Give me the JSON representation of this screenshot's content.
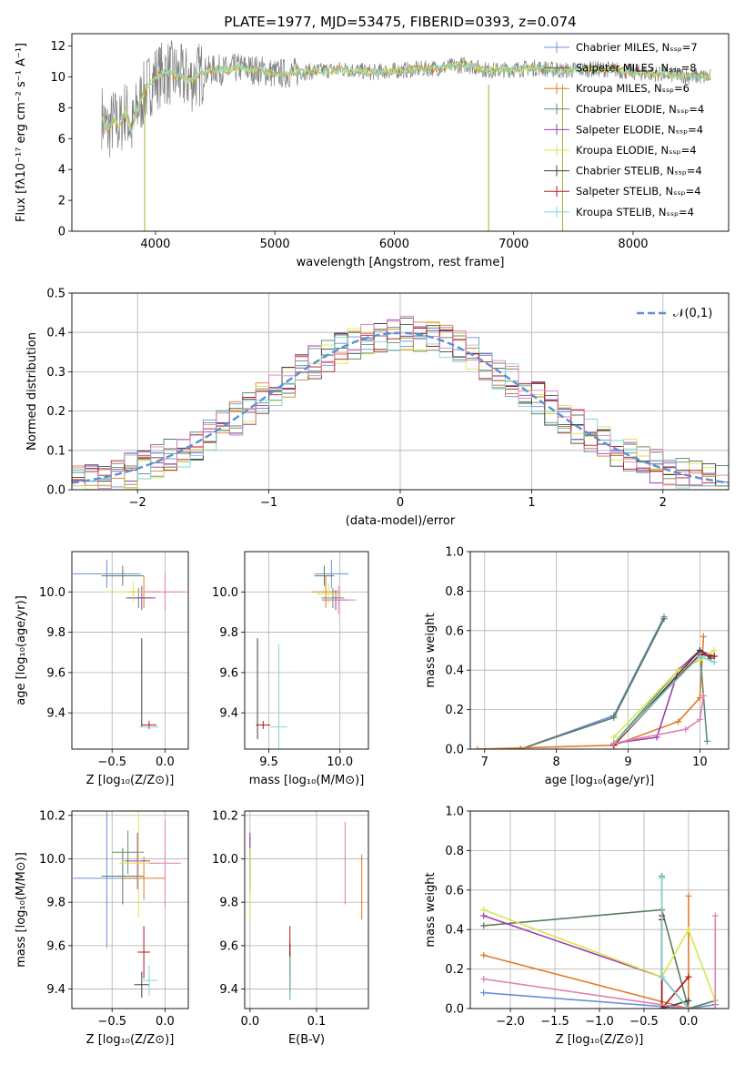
{
  "colors": [
    "#6a8fd8",
    "#5a7a5a",
    "#e07a2a",
    "#5f8f6f",
    "#9b3fb0",
    "#d9e64a",
    "#404040",
    "#b01818",
    "#7fd6d6",
    "#e07fb0"
  ],
  "chart_data": [
    {
      "id": "spectrum",
      "type": "line",
      "title": "PLATE=1977, MJD=53475, FIBERID=0393, z=0.074",
      "xlabel": "wavelength [Angstrom, rest frame]",
      "ylabel": "Flux [fλ10⁻¹⁷ erg cm⁻² s⁻¹ A⁻¹]",
      "xlim": [
        3300,
        8800
      ],
      "ylim": [
        0,
        12.8
      ],
      "xticks": [
        4000,
        5000,
        6000,
        7000,
        8000
      ],
      "yticks": [
        0,
        2,
        4,
        6,
        8,
        10,
        12
      ],
      "grid": false,
      "legend_position": "top-right",
      "legend": [
        "Chabrier MILES, Nₛₛₚ=7",
        "Salpeter MILES, Nₛₛₚ=8",
        "Kroupa MILES, Nₛₛₚ=6",
        "Chabrier ELODIE, Nₛₛₚ=4",
        "Salpeter ELODIE, Nₛₛₚ=4",
        "Kroupa ELODIE, Nₛₛₚ=4",
        "Chabrier STELIB, Nₛₛₚ=4",
        "Salpeter STELIB, Nₛₛₚ=4",
        "Kroupa STELIB, Nₛₛₚ=4"
      ],
      "data_trace": {
        "x": [
          3550,
          3600,
          3650,
          3700,
          3750,
          3800,
          3850,
          3900,
          3950,
          4000,
          4100,
          4200,
          4300,
          4400,
          4500,
          4600,
          4700,
          4800,
          4900,
          5000,
          5200,
          5400,
          5600,
          5800,
          6000,
          6200,
          6400,
          6600,
          6800,
          7000,
          7200,
          7400,
          7600,
          7800,
          8000,
          8200,
          8400,
          8600
        ],
        "y": [
          7.5,
          6.5,
          7.2,
          6.8,
          7.9,
          6.5,
          8.0,
          8.8,
          9.5,
          10.0,
          10.3,
          10.0,
          9.8,
          10.3,
          10.5,
          10.4,
          10.6,
          10.5,
          10.4,
          10.2,
          10.3,
          10.4,
          10.5,
          10.3,
          10.4,
          10.5,
          10.6,
          10.8,
          10.4,
          10.5,
          10.6,
          10.4,
          10.5,
          10.5,
          10.3,
          10.2,
          10.1,
          10.0
        ]
      }
    },
    {
      "id": "residuals",
      "type": "line",
      "xlabel": "(data-model)/error",
      "ylabel": "Normed distribution",
      "xlim": [
        -2.5,
        2.5
      ],
      "ylim": [
        0,
        0.5
      ],
      "xticks": [
        -2,
        -1,
        0,
        1,
        2
      ],
      "yticks": [
        0.0,
        0.1,
        0.2,
        0.3,
        0.4,
        0.5
      ],
      "grid": true,
      "legend_position": "top-right",
      "legend": [
        "𝒩(0,1)"
      ]
    },
    {
      "id": "z-age",
      "type": "scatter",
      "xlabel": "Z [log₁₀(Z/Z⊙)]",
      "ylabel": "age  [log₁₀(age/yr)]",
      "xlim": [
        -0.88,
        0.22
      ],
      "ylim": [
        9.22,
        10.2
      ],
      "xticks": [
        -0.5,
        0.0
      ],
      "yticks": [
        9.4,
        9.6,
        9.8,
        10.0
      ],
      "grid": true
    },
    {
      "id": "mass-age",
      "type": "scatter",
      "xlabel": "mass [log₁₀(M/M⊙)]",
      "ylabel": "",
      "xlim": [
        9.33,
        10.2
      ],
      "ylim": [
        9.22,
        10.2
      ],
      "xticks": [
        9.5,
        10.0
      ],
      "yticks": [
        9.4,
        9.6,
        9.8,
        10.0
      ],
      "grid": true
    },
    {
      "id": "age-weight",
      "type": "line",
      "xlabel": "age  [log₁₀(age/yr)]",
      "ylabel": "mass weight",
      "xlim": [
        6.8,
        10.4
      ],
      "ylim": [
        0,
        1
      ],
      "xticks": [
        7,
        8,
        9,
        10
      ],
      "yticks": [
        0.0,
        0.2,
        0.4,
        0.6,
        0.8,
        1.0
      ],
      "grid": true,
      "series": [
        {
          "x": [
            7.5,
            8.8,
            9.5
          ],
          "y": [
            0,
            0.17,
            0.67
          ]
        },
        {
          "x": [
            7.5,
            8.8,
            9.5
          ],
          "y": [
            0,
            0.16,
            0.66
          ]
        },
        {
          "x": [
            6.9,
            8.8,
            9.7,
            10.0,
            10.05
          ],
          "y": [
            0,
            0.02,
            0.14,
            0.26,
            0.57
          ]
        },
        {
          "x": [
            8.8,
            9.7,
            10.0,
            10.1
          ],
          "y": [
            0.03,
            0.4,
            0.5,
            0.04
          ]
        },
        {
          "x": [
            8.8,
            9.4,
            9.7,
            10.0,
            10.2
          ],
          "y": [
            0.03,
            0.06,
            0.4,
            0.5,
            0.47
          ]
        },
        {
          "x": [
            8.8,
            9.7,
            10.0,
            10.2
          ],
          "y": [
            0.06,
            0.4,
            0.45,
            0.5
          ]
        },
        {
          "x": [
            8.8,
            10.0,
            10.15
          ],
          "y": [
            0.02,
            0.5,
            0.46
          ]
        },
        {
          "x": [
            8.8,
            10.0,
            10.2
          ],
          "y": [
            0.02,
            0.48,
            0.47
          ]
        },
        {
          "x": [
            8.8,
            10.0,
            10.2
          ],
          "y": [
            0.03,
            0.47,
            0.44
          ]
        },
        {
          "x": [
            8.8,
            9.8,
            10.0,
            10.05
          ],
          "y": [
            0.03,
            0.1,
            0.15,
            0.27
          ]
        }
      ]
    },
    {
      "id": "z-mass",
      "type": "scatter",
      "xlabel": "Z [log₁₀(Z/Z⊙)]",
      "ylabel": "mass [log₁₀(M/M⊙)]",
      "xlim": [
        -0.88,
        0.22
      ],
      "ylim": [
        9.31,
        10.22
      ],
      "xticks": [
        -0.5,
        0.0
      ],
      "yticks": [
        9.4,
        9.6,
        9.8,
        10.0,
        10.2
      ],
      "grid": true
    },
    {
      "id": "ebv-mass",
      "type": "scatter",
      "xlabel": "E(B-V)",
      "ylabel": "",
      "xlim": [
        -0.008,
        0.178
      ],
      "ylim": [
        9.31,
        10.22
      ],
      "xticks": [
        0.0,
        0.1
      ],
      "yticks": [
        9.4,
        9.6,
        9.8,
        10.0,
        10.2
      ],
      "grid": true
    },
    {
      "id": "z-weight",
      "type": "line",
      "xlabel": "Z [log₁₀(Z/Z⊙)]",
      "ylabel": "mass weight",
      "xlim": [
        -2.45,
        0.45
      ],
      "ylim": [
        0,
        1
      ],
      "xticks": [
        -2.0,
        -1.5,
        -1.0,
        -0.5,
        0.0
      ],
      "yticks": [
        0.0,
        0.2,
        0.4,
        0.6,
        0.8,
        1.0
      ],
      "grid": true,
      "series": [
        {
          "x": [
            -2.3,
            0.0,
            0.3
          ],
          "y": [
            0.08,
            0.0,
            0.02
          ]
        },
        {
          "x": [
            -2.3,
            -0.3,
            0.0,
            0.3
          ],
          "y": [
            0.42,
            0.5,
            0.0,
            0.04
          ]
        },
        {
          "x": [
            -2.3,
            0.0,
            0.0
          ],
          "y": [
            0.27,
            0.0,
            0.57
          ]
        },
        {
          "x": [
            -0.3,
            -0.3,
            0.0,
            0.3
          ],
          "y": [
            0.67,
            0.16,
            0.0,
            0.04
          ]
        },
        {
          "x": [
            -2.3,
            -0.3,
            0.0
          ],
          "y": [
            0.47,
            0.16,
            0.0
          ]
        },
        {
          "x": [
            -2.3,
            -0.3,
            0.0,
            0.3
          ],
          "y": [
            0.5,
            0.16,
            0.4,
            0.04
          ]
        },
        {
          "x": [
            -0.3,
            -0.3,
            0.0
          ],
          "y": [
            0.45,
            0.0,
            0.04
          ]
        },
        {
          "x": [
            -0.3,
            -0.3,
            0.0
          ],
          "y": [
            0.47,
            0.0,
            0.16
          ]
        },
        {
          "x": [
            -0.3,
            -0.3,
            0.0
          ],
          "y": [
            0.66,
            0.16,
            0.0
          ]
        },
        {
          "x": [
            -2.3,
            0.0,
            0.3,
            0.3
          ],
          "y": [
            0.15,
            0.0,
            0.0,
            0.47
          ]
        }
      ]
    }
  ]
}
